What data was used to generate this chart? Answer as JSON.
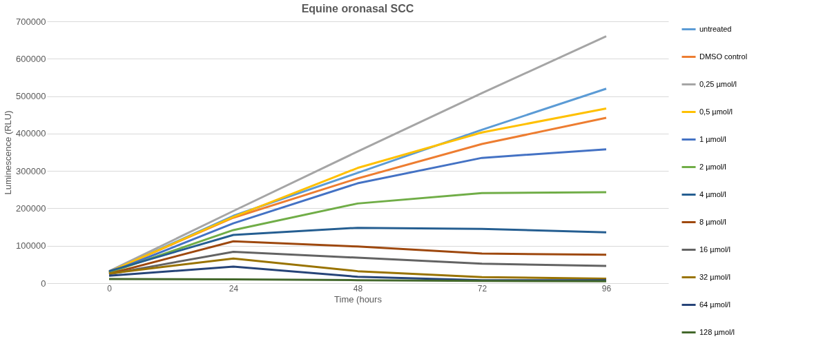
{
  "chart_data": {
    "type": "line",
    "title": "Equine oronasal SCC",
    "xlabel": "Time (hours",
    "ylabel": "Luminescence (RLU)",
    "categories": [
      "0",
      "24",
      "48",
      "72",
      "96"
    ],
    "ylim": [
      0,
      700000
    ],
    "yticks": [
      0,
      100000,
      200000,
      300000,
      400000,
      500000,
      600000,
      700000
    ],
    "grid": "y",
    "legend": "right",
    "marker": "none",
    "line_style": "solid",
    "series": [
      {
        "name": "untreated",
        "color": "#5b9bd5",
        "values": [
          30000,
          180000,
          295000,
          410000,
          520000
        ]
      },
      {
        "name": "DMSO control",
        "color": "#ed7d31",
        "values": [
          30000,
          175000,
          280000,
          372000,
          442000
        ]
      },
      {
        "name": "0,25 µmol/l",
        "color": "#a5a5a5",
        "values": [
          32000,
          193000,
          352000,
          508000,
          660000
        ]
      },
      {
        "name": "0,5 µmol/l",
        "color": "#ffc000",
        "values": [
          30000,
          177000,
          308000,
          403000,
          467000
        ]
      },
      {
        "name": "1 µmol/l",
        "color": "#4472c4",
        "values": [
          28000,
          160000,
          267000,
          335000,
          358000
        ]
      },
      {
        "name": "2 µmol/l",
        "color": "#70ad47",
        "values": [
          28000,
          142000,
          213000,
          241000,
          243000
        ]
      },
      {
        "name": "4 µmol/l",
        "color": "#255e91",
        "values": [
          32000,
          129000,
          148000,
          145000,
          136000
        ]
      },
      {
        "name": "8 µmol/l",
        "color": "#9e480e",
        "values": [
          25000,
          112000,
          98000,
          79000,
          76000
        ]
      },
      {
        "name": "16 µmol/l",
        "color": "#636363",
        "values": [
          24000,
          84000,
          68000,
          52000,
          46000
        ]
      },
      {
        "name": "32 µmol/l",
        "color": "#997300",
        "values": [
          26000,
          66000,
          32000,
          16000,
          12000
        ]
      },
      {
        "name": "64 µmol/l",
        "color": "#264478",
        "values": [
          20000,
          44000,
          17000,
          8000,
          8000
        ]
      },
      {
        "name": "128 µmol/l",
        "color": "#43682b",
        "values": [
          11000,
          10000,
          8000,
          6000,
          5000
        ]
      }
    ]
  }
}
